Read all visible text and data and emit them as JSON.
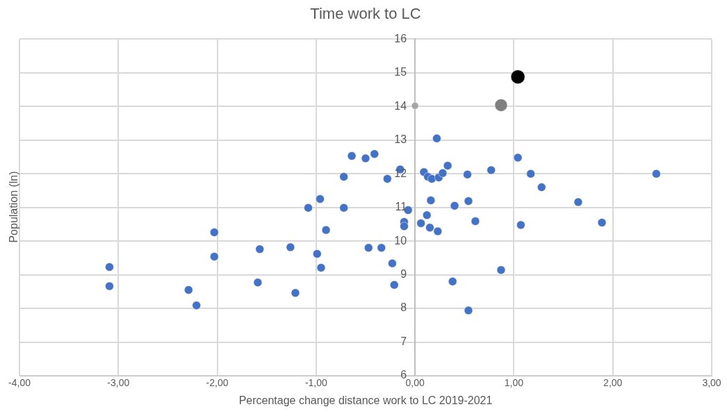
{
  "chart_data": {
    "type": "scatter",
    "title": "Time work to LC",
    "xlabel": "Percentage change distance work to LC 2019-2021",
    "ylabel": "Population (ln)",
    "xlim": [
      -4,
      3
    ],
    "xticks": [
      {
        "value": -4,
        "label": "-4,00"
      },
      {
        "value": -3,
        "label": "-3,00"
      },
      {
        "value": -2,
        "label": "-2,00"
      },
      {
        "value": -1,
        "label": "-1,00"
      },
      {
        "value": 0,
        "label": "0,00"
      },
      {
        "value": 1,
        "label": "1,00"
      },
      {
        "value": 2,
        "label": "2,00"
      },
      {
        "value": 3,
        "label": "3,00"
      }
    ],
    "ylim": [
      6,
      16
    ],
    "yticks": [
      6,
      7,
      8,
      9,
      10,
      11,
      12,
      13,
      14,
      15,
      16
    ],
    "grid": true,
    "legend": false,
    "marker": "circle",
    "series": [
      {
        "color": "#4472c4",
        "x": [
          -3.09,
          -3.09,
          -2.29,
          -2.21,
          -2.03,
          -2.03,
          -1.57,
          -1.59,
          -1.26,
          -1.21,
          -1.08,
          -0.96,
          -0.99,
          -0.95,
          -0.9,
          -0.72,
          -0.72,
          -0.64,
          -0.5,
          -0.41,
          -0.47,
          -0.34,
          -0.28,
          -0.15,
          -0.23,
          -0.21,
          -0.11,
          -0.11,
          -0.07,
          0.06,
          0.09,
          0.12,
          0.13,
          0.17,
          0.24,
          0.28,
          0.33,
          0.22,
          0.16,
          0.15,
          0.23,
          0.4,
          0.38,
          0.53,
          0.54,
          0.61,
          0.54,
          0.77,
          0.87,
          1.04,
          1.17,
          1.07,
          1.28,
          1.65,
          1.89,
          2.44
        ],
        "values": [
          9.23,
          8.66,
          8.55,
          8.09,
          10.26,
          9.54,
          9.76,
          8.77,
          9.82,
          8.46,
          10.99,
          11.25,
          9.62,
          9.21,
          10.33,
          11.91,
          10.99,
          12.53,
          12.46,
          12.59,
          9.8,
          9.8,
          11.85,
          12.13,
          9.34,
          8.7,
          10.57,
          10.44,
          10.92,
          10.53,
          12.05,
          10.77,
          11.91,
          11.85,
          11.89,
          12.02,
          12.24,
          13.05,
          11.21,
          10.4,
          10.29,
          11.05,
          8.8,
          11.98,
          11.19,
          10.59,
          7.94,
          12.11,
          9.14,
          12.48,
          12.0,
          10.48,
          11.6,
          11.16,
          10.55,
          12.0
        ]
      },
      {
        "color": "#a5a5a5",
        "x": [
          0.0
        ],
        "values": [
          14.02
        ]
      },
      {
        "color": "#7f7f7f",
        "x": [
          0.87
        ],
        "values": [
          14.04
        ]
      },
      {
        "color": "#000000",
        "x": [
          1.04
        ],
        "values": [
          14.88
        ]
      }
    ]
  }
}
